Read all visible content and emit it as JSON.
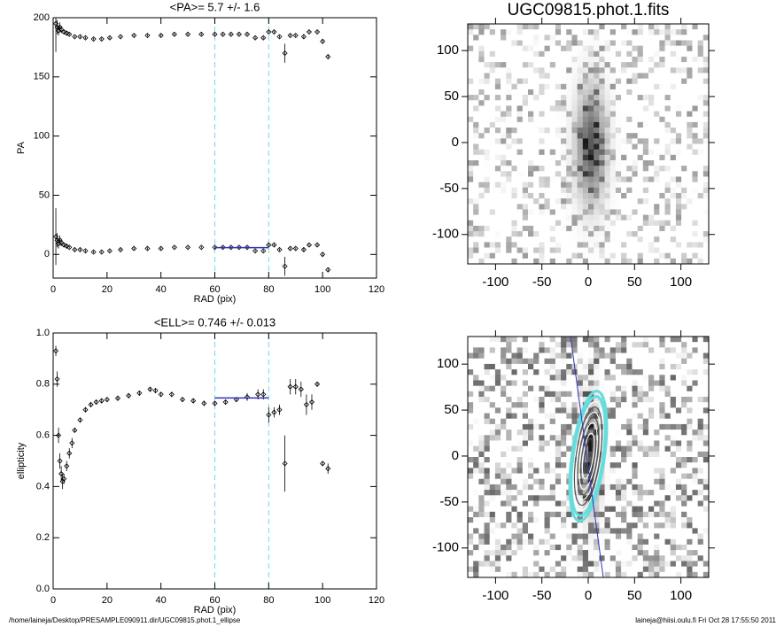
{
  "chart_data": [
    {
      "type": "scatter",
      "title": "<PA>=   5.7 +/-   1.6",
      "xlabel": "RAD (pix)",
      "ylabel": "PA",
      "xlim": [
        0,
        120
      ],
      "ylim": [
        -20,
        200
      ],
      "xticks": [
        0,
        20,
        40,
        60,
        80,
        100,
        120
      ],
      "yticks": [
        0,
        50,
        100,
        150,
        200
      ],
      "vlines": [
        60,
        80
      ],
      "vline_color": "#66ddee",
      "fit": {
        "xlim": [
          60,
          80
        ],
        "y": 5.7,
        "color": "#3333bb"
      },
      "x": [
        1,
        1.5,
        2,
        2.5,
        3,
        4,
        5,
        6,
        8,
        10,
        12,
        15,
        18,
        21,
        25,
        30,
        35,
        40,
        45,
        50,
        55,
        60,
        63,
        66,
        69,
        72,
        75,
        78,
        80,
        82,
        84,
        86,
        88,
        90,
        93,
        95,
        98,
        100,
        102
      ],
      "series": [
        {
          "color": "#000000",
          "values": [
            15,
            12,
            9,
            12,
            10,
            8,
            7,
            6,
            4,
            4,
            3,
            2,
            2,
            3,
            4,
            5,
            5,
            5,
            6,
            6,
            6,
            6,
            6,
            6,
            6,
            6,
            3,
            3,
            8,
            8,
            4,
            -10,
            5,
            5,
            4,
            8,
            8,
            0,
            -13
          ],
          "errors": [
            24,
            6,
            4,
            4,
            3,
            2,
            2,
            1,
            1,
            1,
            1,
            1,
            1,
            1,
            1,
            1,
            1,
            1,
            1,
            1,
            1,
            1,
            1,
            1,
            1,
            1,
            1,
            1,
            1,
            1,
            1,
            8,
            1,
            1,
            2,
            1,
            1,
            2,
            2
          ]
        },
        {
          "color": "#000000",
          "values": [
            195,
            192,
            189,
            192,
            190,
            188,
            187,
            186,
            184,
            184,
            183,
            182,
            182,
            183,
            184,
            185,
            185,
            185,
            186,
            186,
            186,
            186,
            186,
            186,
            186,
            186,
            183,
            183,
            188,
            188,
            184,
            170,
            185,
            185,
            184,
            188,
            188,
            180,
            167
          ],
          "errors": [
            24,
            6,
            4,
            4,
            3,
            2,
            2,
            1,
            1,
            1,
            1,
            1,
            1,
            1,
            1,
            1,
            1,
            1,
            1,
            1,
            1,
            1,
            1,
            1,
            1,
            1,
            1,
            1,
            1,
            1,
            1,
            8,
            1,
            1,
            2,
            1,
            1,
            2,
            2
          ]
        }
      ]
    },
    {
      "type": "scatter",
      "title": "<ELL>= 0.746 +/-  0.013",
      "xlabel": "RAD (pix)",
      "ylabel": "ellipticity",
      "xlim": [
        0,
        120
      ],
      "ylim": [
        0,
        1
      ],
      "xticks": [
        0,
        20,
        40,
        60,
        80,
        100,
        120
      ],
      "yticks": [
        {
          "value": 0,
          "label": "0.0"
        },
        {
          "value": 0.2,
          "label": "0.2"
        },
        {
          "value": 0.4,
          "label": "0.4"
        },
        {
          "value": 0.6,
          "label": "0.6"
        },
        {
          "value": 0.8,
          "label": "0.8"
        },
        {
          "value": 1,
          "label": "1.0"
        }
      ],
      "vlines": [
        60,
        80
      ],
      "vline_color": "#66ddee",
      "fit": {
        "xlim": [
          60,
          80
        ],
        "y": 0.746,
        "color": "#3333bb"
      },
      "x": [
        1,
        1.5,
        2,
        2.5,
        3,
        3.5,
        4,
        5,
        6,
        7,
        8,
        10,
        12,
        14,
        16,
        18,
        20,
        24,
        28,
        32,
        36,
        38,
        40,
        44,
        48,
        52,
        56,
        60,
        64,
        68,
        72,
        76,
        78,
        80,
        82,
        84,
        86,
        88,
        90,
        92,
        94,
        96,
        98,
        100,
        102
      ],
      "series": [
        {
          "color": "#000000",
          "values": [
            0.93,
            0.82,
            0.6,
            0.5,
            0.45,
            0.42,
            0.43,
            0.48,
            0.53,
            0.57,
            0.62,
            0.66,
            0.7,
            0.72,
            0.73,
            0.735,
            0.74,
            0.745,
            0.755,
            0.765,
            0.78,
            0.775,
            0.76,
            0.76,
            0.74,
            0.735,
            0.725,
            0.725,
            0.73,
            0.74,
            0.75,
            0.76,
            0.76,
            0.68,
            0.69,
            0.7,
            0.49,
            0.79,
            0.79,
            0.78,
            0.72,
            0.73,
            0.8,
            0.49,
            0.47
          ],
          "errors": [
            0.02,
            0.03,
            0.03,
            0.03,
            0.03,
            0.03,
            0.02,
            0.02,
            0.02,
            0.02,
            0.01,
            0.01,
            0.01,
            0.01,
            0.01,
            0.01,
            0.01,
            0.01,
            0.01,
            0.01,
            0.01,
            0.01,
            0.01,
            0.01,
            0.01,
            0.01,
            0.01,
            0.01,
            0.01,
            0.01,
            0.015,
            0.02,
            0.02,
            0.03,
            0.02,
            0.02,
            0.11,
            0.03,
            0.03,
            0.03,
            0.04,
            0.03,
            0.01,
            0.01,
            0.02
          ]
        }
      ]
    },
    {
      "type": "image",
      "title": "UGC09815.phot.1.fits",
      "xlim": [
        -130,
        130
      ],
      "ylim": [
        -132,
        129
      ],
      "xticks": [
        -100,
        -50,
        0,
        50,
        100
      ],
      "yticks": [
        -100,
        -50,
        0,
        50,
        100
      ]
    },
    {
      "type": "image-contour",
      "xlim": [
        -130,
        130
      ],
      "ylim": [
        -132,
        130
      ],
      "xticks": [
        -100,
        -50,
        0,
        50,
        100
      ],
      "yticks": [
        -100,
        -50,
        0,
        50,
        100
      ]
    }
  ],
  "footer": {
    "left": "/home/laineja/Desktop/PRESAMPLE090911.dir/UGC09815.phot.1_ellipse",
    "right": "laineja@hiisi.oulu.fi  Fri Oct 28 17:55:50 2011"
  }
}
